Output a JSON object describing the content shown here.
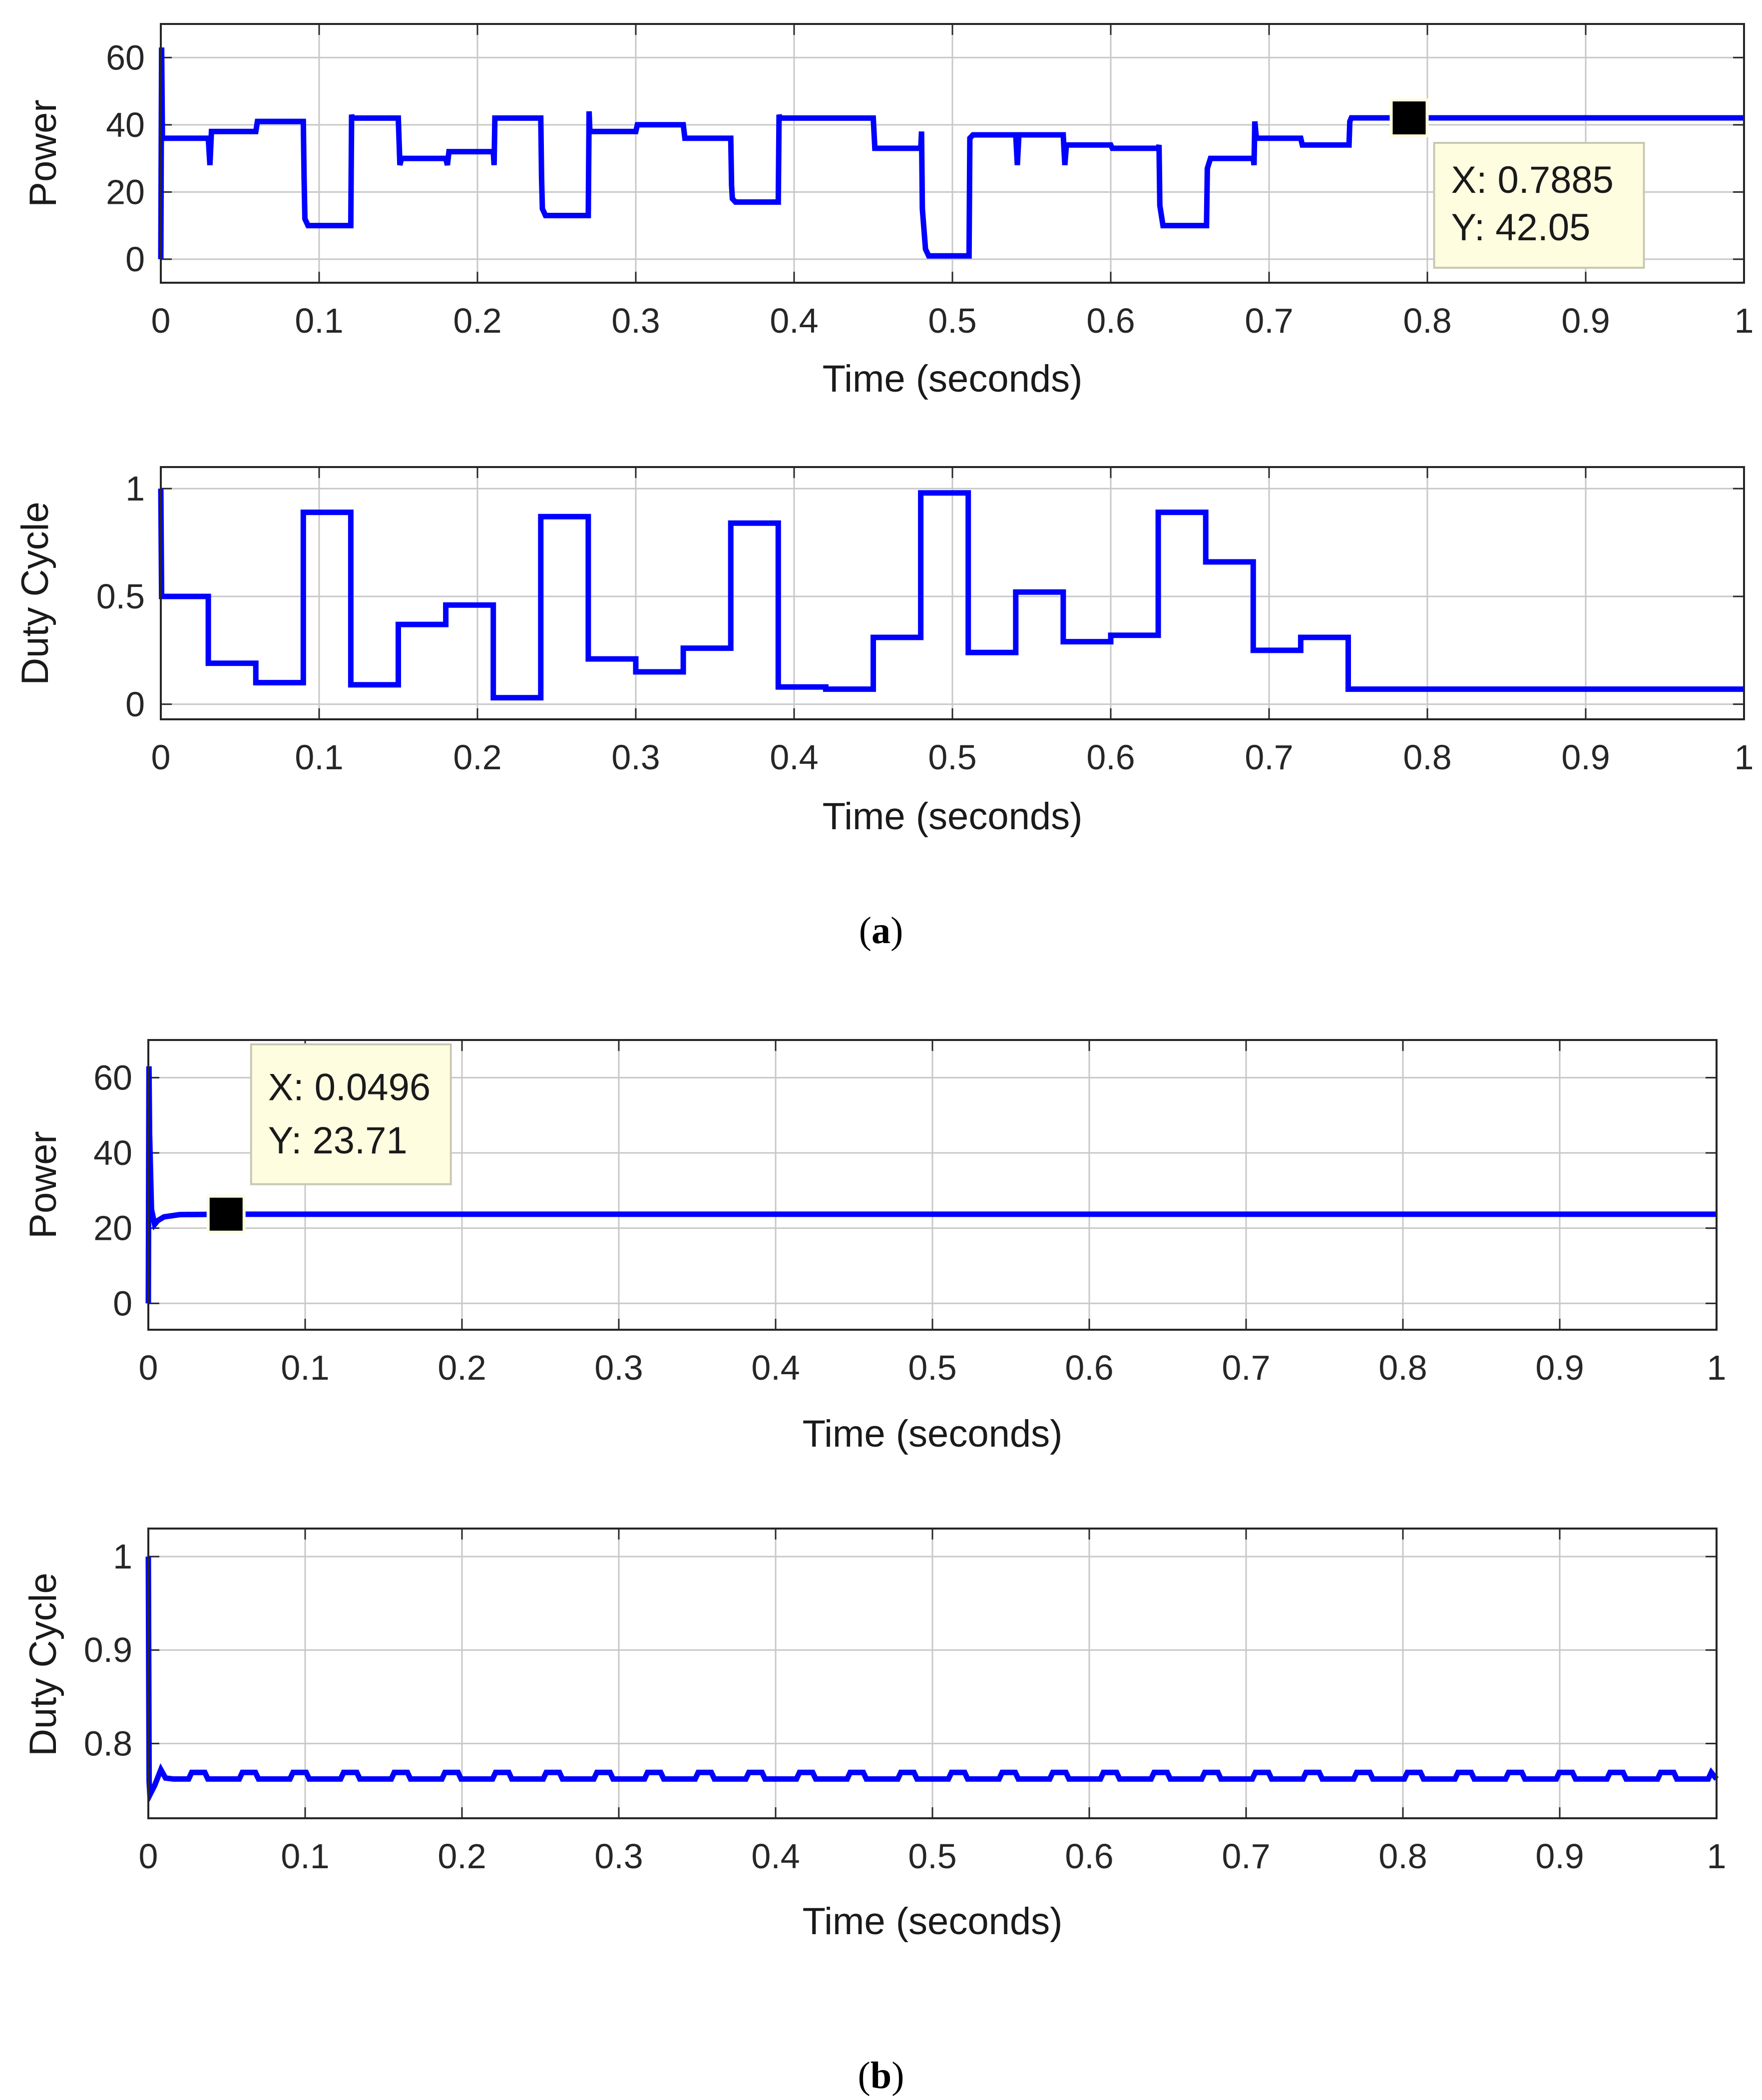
{
  "figure": {
    "panel_labels": [
      {
        "open": "(",
        "letter": "a",
        "close": ")"
      },
      {
        "open": "(",
        "letter": "b",
        "close": ")"
      }
    ]
  },
  "colors": {
    "line": "#0000ff",
    "grid": "#c8c8c8",
    "axes": "#262626",
    "datatip_bg": "#fffde0",
    "datatip_border": "#c8c8b4",
    "marker": "#000000"
  },
  "chart_data": [
    {
      "id": "a-power",
      "type": "line",
      "xlabel": "Time (seconds)",
      "ylabel": "Power",
      "xlim": [
        0,
        1
      ],
      "ylim": [
        -7,
        70
      ],
      "xticks": [
        0,
        0.1,
        0.2,
        0.3,
        0.4,
        0.5,
        0.6,
        0.7,
        0.8,
        0.9,
        1
      ],
      "xtick_labels": [
        "0",
        "0.1",
        "0.2",
        "0.3",
        "0.4",
        "0.5",
        "0.6",
        "0.7",
        "0.8",
        "0.9",
        "1"
      ],
      "yticks": [
        0,
        20,
        40,
        60
      ],
      "ytick_labels": [
        "0",
        "20",
        "40",
        "60"
      ],
      "grid": true,
      "series": [
        {
          "name": "Power",
          "x": [
            0,
            0.0005,
            0.001,
            0.002,
            0.003,
            0.03,
            0.031,
            0.032,
            0.033,
            0.06,
            0.061,
            0.09,
            0.0905,
            0.091,
            0.093,
            0.095,
            0.12,
            0.1205,
            0.121,
            0.123,
            0.15,
            0.151,
            0.152,
            0.153,
            0.18,
            0.181,
            0.182,
            0.183,
            0.21,
            0.2105,
            0.211,
            0.212,
            0.24,
            0.2405,
            0.241,
            0.243,
            0.245,
            0.27,
            0.2705,
            0.271,
            0.273,
            0.275,
            0.3,
            0.301,
            0.33,
            0.331,
            0.36,
            0.3605,
            0.361,
            0.363,
            0.365,
            0.39,
            0.3905,
            0.391,
            0.393,
            0.395,
            0.42,
            0.421,
            0.45,
            0.451,
            0.48,
            0.4805,
            0.481,
            0.483,
            0.485,
            0.51,
            0.5105,
            0.511,
            0.513,
            0.515,
            0.54,
            0.541,
            0.542,
            0.543,
            0.57,
            0.571,
            0.572,
            0.573,
            0.6,
            0.601,
            0.63,
            0.6305,
            0.631,
            0.633,
            0.635,
            0.66,
            0.6605,
            0.661,
            0.663,
            0.665,
            0.69,
            0.6905,
            0.691,
            0.692,
            0.72,
            0.721,
            0.75,
            0.7505,
            0.751,
            0.752,
            1.0
          ],
          "y": [
            0,
            63,
            36,
            36,
            36,
            36,
            28,
            38,
            38,
            38,
            41,
            41,
            24,
            12,
            10,
            10,
            10,
            43,
            42,
            42,
            42,
            28,
            30,
            30,
            30,
            28,
            32,
            32,
            32,
            28,
            42,
            42,
            42,
            24,
            15,
            13,
            13,
            13,
            44,
            38,
            38,
            38,
            38,
            40,
            40,
            36,
            36,
            22,
            18,
            17,
            17,
            17,
            43,
            42,
            42,
            42,
            42,
            42,
            42,
            33,
            33,
            38,
            15,
            3,
            1,
            1,
            1,
            36,
            37,
            37,
            37,
            28,
            37,
            37,
            37,
            28,
            34,
            34,
            34,
            33,
            33,
            34,
            16,
            10,
            10,
            10,
            10,
            27,
            30,
            30,
            30,
            28,
            41,
            36,
            36,
            34,
            34,
            34,
            41,
            42.05,
            42.05
          ]
        }
      ],
      "datatip": {
        "x_label": "X: 0.7885",
        "y_label": "Y: 42.05",
        "x": 0.7885,
        "y": 42.05
      }
    },
    {
      "id": "a-duty",
      "type": "line",
      "xlabel": "Time (seconds)",
      "ylabel": "Duty Cycle",
      "xlim": [
        0,
        1
      ],
      "ylim": [
        -0.07,
        1.1
      ],
      "xticks": [
        0,
        0.1,
        0.2,
        0.3,
        0.4,
        0.5,
        0.6,
        0.7,
        0.8,
        0.9,
        1
      ],
      "xtick_labels": [
        "0",
        "0.1",
        "0.2",
        "0.3",
        "0.4",
        "0.5",
        "0.6",
        "0.7",
        "0.8",
        "0.9",
        "1"
      ],
      "yticks": [
        0,
        0.5,
        1
      ],
      "ytick_labels": [
        "0",
        "0.5",
        "1"
      ],
      "grid": true,
      "series": [
        {
          "name": "Duty Cycle",
          "x": [
            0,
            0.0005,
            0.001,
            0.03,
            0.03,
            0.06,
            0.06,
            0.09,
            0.09,
            0.12,
            0.12,
            0.15,
            0.15,
            0.18,
            0.18,
            0.21,
            0.21,
            0.24,
            0.24,
            0.27,
            0.27,
            0.3,
            0.3,
            0.33,
            0.33,
            0.36,
            0.36,
            0.39,
            0.39,
            0.42,
            0.42,
            0.45,
            0.45,
            0.48,
            0.48,
            0.51,
            0.51,
            0.54,
            0.54,
            0.57,
            0.57,
            0.6,
            0.6,
            0.63,
            0.63,
            0.66,
            0.66,
            0.69,
            0.69,
            0.72,
            0.72,
            0.75,
            0.75,
            1.0
          ],
          "y": [
            1.0,
            0.5,
            0.5,
            0.5,
            0.19,
            0.19,
            0.1,
            0.1,
            0.89,
            0.89,
            0.09,
            0.09,
            0.37,
            0.37,
            0.46,
            0.46,
            0.03,
            0.03,
            0.87,
            0.87,
            0.21,
            0.21,
            0.15,
            0.15,
            0.26,
            0.26,
            0.84,
            0.84,
            0.08,
            0.08,
            0.07,
            0.07,
            0.31,
            0.31,
            0.98,
            0.98,
            0.24,
            0.24,
            0.52,
            0.52,
            0.29,
            0.29,
            0.32,
            0.32,
            0.89,
            0.89,
            0.66,
            0.66,
            0.25,
            0.25,
            0.31,
            0.31,
            0.07,
            0.07
          ]
        }
      ]
    },
    {
      "id": "b-power",
      "type": "line",
      "xlabel": "Time (seconds)",
      "ylabel": "Power",
      "xlim": [
        0,
        1
      ],
      "ylim": [
        -7,
        70
      ],
      "xticks": [
        0,
        0.1,
        0.2,
        0.3,
        0.4,
        0.5,
        0.6,
        0.7,
        0.8,
        0.9,
        1
      ],
      "xtick_labels": [
        "0",
        "0.1",
        "0.2",
        "0.3",
        "0.4",
        "0.5",
        "0.6",
        "0.7",
        "0.8",
        "0.9",
        "1"
      ],
      "yticks": [
        0,
        20,
        40,
        60
      ],
      "ytick_labels": [
        "0",
        "20",
        "40",
        "60"
      ],
      "grid": true,
      "series": [
        {
          "name": "Power",
          "x": [
            0,
            0.0004,
            0.0008,
            0.002,
            0.004,
            0.006,
            0.01,
            0.02,
            0.0496,
            1.0
          ],
          "y": [
            0,
            63,
            45,
            25,
            21,
            22,
            23,
            23.6,
            23.71,
            23.71
          ]
        }
      ],
      "datatip": {
        "x_label": "X: 0.0496",
        "y_label": "Y: 23.71",
        "x": 0.0496,
        "y": 23.71
      }
    },
    {
      "id": "b-duty",
      "type": "line",
      "xlabel": "Time (seconds)",
      "ylabel": "Duty Cycle",
      "xlim": [
        0,
        1
      ],
      "ylim": [
        0.72,
        1.03
      ],
      "xticks": [
        0,
        0.1,
        0.2,
        0.3,
        0.4,
        0.5,
        0.6,
        0.7,
        0.8,
        0.9,
        1
      ],
      "xtick_labels": [
        "0",
        "0.1",
        "0.2",
        "0.3",
        "0.4",
        "0.5",
        "0.6",
        "0.7",
        "0.8",
        "0.9",
        "1"
      ],
      "yticks": [
        0.8,
        0.9,
        1
      ],
      "ytick_labels": [
        "0.8",
        "0.9",
        "1"
      ],
      "grid": true,
      "series": [
        {
          "name": "Duty Cycle",
          "x": [
            0,
            0.0005,
            0.001,
            0.004,
            0.008,
            0.011,
            0.016
          ],
          "y": [
            1.0,
            0.76,
            0.745,
            0.755,
            0.772,
            0.763,
            0.762
          ],
          "ripple": {
            "start": 0.016,
            "end": 1.0,
            "period": 0.0323,
            "base": 0.762,
            "peak": 0.769
          }
        }
      ]
    }
  ]
}
